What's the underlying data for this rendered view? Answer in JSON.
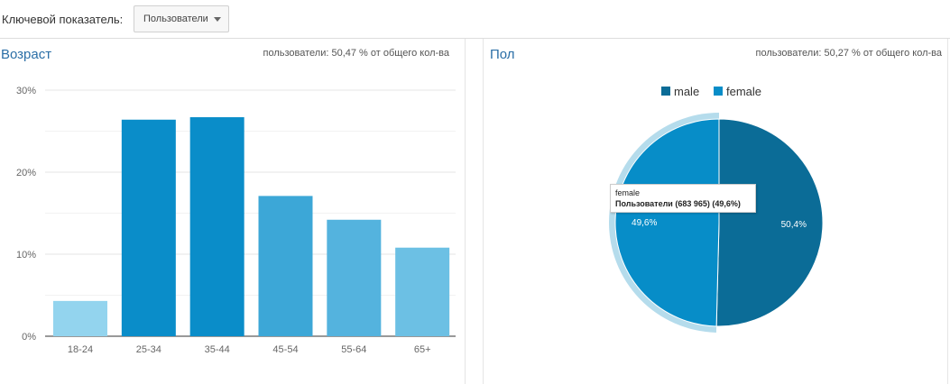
{
  "header": {
    "metric_label": "Ключевой показатель:",
    "metric_value": "Пользователи"
  },
  "age_panel": {
    "title": "Возраст",
    "summary": "пользователи: 50,47 % от общего кол-ва"
  },
  "gender_panel": {
    "title": "Пол",
    "summary": "пользователи: 50,27 % от общего кол-ва",
    "tooltip": {
      "label": "female",
      "value": "Пользователи (683 965) (49,6%)"
    }
  },
  "chart_data": [
    {
      "type": "bar",
      "title": "Возраст",
      "categories": [
        "18-24",
        "25-34",
        "35-44",
        "45-54",
        "55-64",
        "65+"
      ],
      "values": [
        4.3,
        26.4,
        26.7,
        17.1,
        14.2,
        10.8
      ],
      "colors": [
        "#93d4ee",
        "#0a8dc9",
        "#0a8dc9",
        "#3ca7d7",
        "#54b3de",
        "#6cc0e4"
      ],
      "ylim": [
        0,
        30
      ],
      "yticks": [
        0,
        10,
        20,
        30
      ],
      "ytick_labels": [
        "0%",
        "10%",
        "20%",
        "30%"
      ],
      "ylabel": "",
      "xlabel": "",
      "grid": true
    },
    {
      "type": "pie",
      "title": "Пол",
      "labels": [
        "male",
        "female"
      ],
      "values": [
        50.4,
        49.6
      ],
      "data_labels": [
        "50,4%",
        "49,6%"
      ],
      "colors": [
        "#0b6c97",
        "#078dc8"
      ],
      "highlighted": "female",
      "legend": "top"
    }
  ]
}
